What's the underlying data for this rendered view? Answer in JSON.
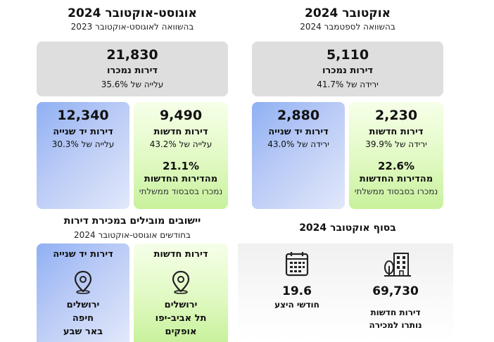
{
  "left_section": {
    "title": "אוגוסט-אוקטובר 2024",
    "subtitle": "בהשוואה לאוגוסט-אוקטובר 2023",
    "total": {
      "value": "21,830",
      "label": "דירות נמכרו",
      "change": "עלייה של 35.6%"
    },
    "second_hand": {
      "value": "12,340",
      "label": "דירות יד שנייה",
      "change": "עלייה של 30.3%"
    },
    "new": {
      "value": "9,490",
      "label": "דירות חדשות",
      "change": "עלייה של 43.2%",
      "share": "21.1%",
      "share_label": "מהדירות החדשות",
      "share_note": "נמכרו בסבסוד ממשלתי"
    }
  },
  "right_section": {
    "title": "אוקטובר 2024",
    "subtitle": "בהשוואה לספטמבר 2024",
    "total": {
      "value": "5,110",
      "label": "דירות נמכרו",
      "change": "ירידה של 41.7%"
    },
    "second_hand": {
      "value": "2,880",
      "label": "דירות יד שנייה",
      "change": "ירידה של 43.0%"
    },
    "new": {
      "value": "2,230",
      "label": "דירות חדשות",
      "change": "ירידה של 39.9%",
      "share": "22.6%",
      "share_label": "מהדירות החדשות",
      "share_note": "נמכרו בסבסוד ממשלתי"
    }
  },
  "leading": {
    "title": "יישובים מובילים במכירת דירות",
    "subtitle": "בחודשים אוגוסט-אוקטובר 2024",
    "second_hand": {
      "label": "דירות יד שנייה",
      "cities": [
        "ירושלים",
        "חיפה",
        "באר שבע"
      ]
    },
    "new": {
      "label": "דירות חדשות",
      "cities": [
        "ירושלים",
        "תל אביב-יפו",
        "אופקים"
      ]
    }
  },
  "end_oct": {
    "title": "בסוף אוקטובר 2024",
    "months": {
      "value": "19.6",
      "label": "חודשי היצע"
    },
    "units": {
      "value": "69,730",
      "label1": "דירות חדשות",
      "label2": "נותרו למכירה"
    }
  },
  "icons": [
    "map-pin-icon",
    "calendar-icon",
    "building-icon"
  ]
}
